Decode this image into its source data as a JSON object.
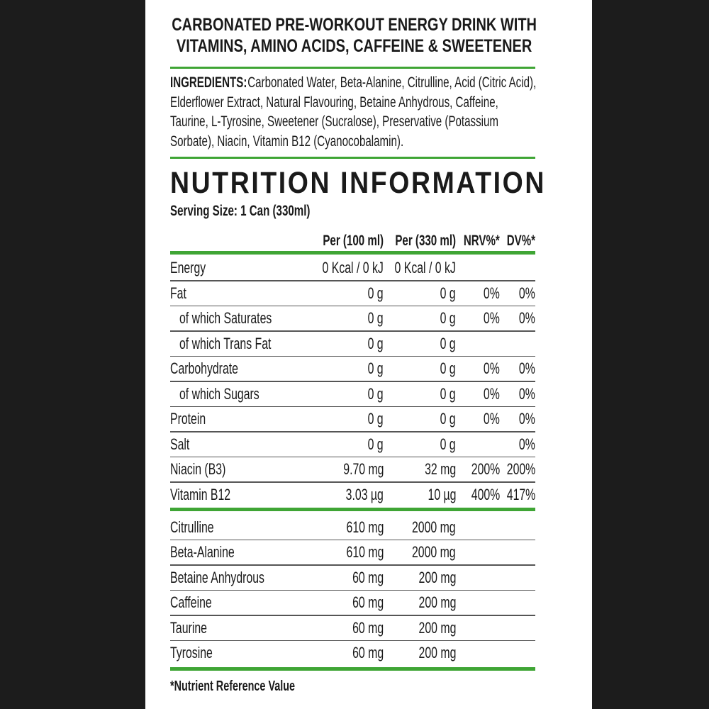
{
  "header": {
    "title_lines": [
      "CARBONATED PRE-WORKOUT ENERGY DRINK WITH",
      "VITAMINS, AMINO ACIDS, CAFFEINE & SWEETENER"
    ]
  },
  "ingredients": {
    "label": "INGREDIENTS:",
    "lines": [
      " Carbonated Water, Beta-Alanine, Citrulline, Acid (Citric Acid),",
      "Elderflower Extract, Natural Flavouring, Betaine Anhydrous, Caffeine,",
      "Taurine, L-Tyrosine, Sweetener (Sucralose), Preservative (Potassium",
      "Sorbate), Niacin, Vitamin B12 (Cyanocobalamin)."
    ]
  },
  "nutrition": {
    "heading": "NUTRITION INFORMATION",
    "serving": "Serving Size: 1 Can (330ml)",
    "columns": [
      "Per (100 ml)",
      "Per (330 ml)",
      "NRV%*",
      "DV%*"
    ],
    "rows": [
      {
        "label": "Energy",
        "per100": "0 Kcal / 0 kJ",
        "per330": "0 Kcal / 0 kJ"
      },
      {
        "label": "Fat",
        "per100": "0 g",
        "per330": "0 g",
        "nrv": "0%",
        "dv": "0%"
      },
      {
        "label": "of which Saturates",
        "indent": true,
        "per100": "0 g",
        "per330": "0 g",
        "nrv": "0%",
        "dv": "0%"
      },
      {
        "label": "of which Trans Fat",
        "indent": true,
        "per100": "0 g",
        "per330": "0 g"
      },
      {
        "label": "Carbohydrate",
        "per100": "0 g",
        "per330": "0 g",
        "nrv": "0%",
        "dv": "0%"
      },
      {
        "label": "of which Sugars",
        "indent": true,
        "per100": "0 g",
        "per330": "0 g",
        "nrv": "0%",
        "dv": "0%"
      },
      {
        "label": "Protein",
        "per100": "0 g",
        "per330": "0 g",
        "nrv": "0%",
        "dv": "0%"
      },
      {
        "label": "Salt",
        "per100": "0 g",
        "per330": "0 g",
        "dv": "0%"
      },
      {
        "label": "Niacin (B3)",
        "per100": "9.70 mg",
        "per330": "32 mg",
        "nrv": "200%",
        "dv": "200%"
      },
      {
        "label": "Vitamin B12",
        "per100": "3.03 µg",
        "per330": "10 µg",
        "nrv": "400%",
        "dv": "417%"
      }
    ],
    "actives": [
      {
        "label": "Citrulline",
        "per100": "610 mg",
        "per330": "2000 mg"
      },
      {
        "label": "Beta-Alanine",
        "per100": "610 mg",
        "per330": "2000 mg"
      },
      {
        "label": "Betaine Anhydrous",
        "per100": "60 mg",
        "per330": "200 mg"
      },
      {
        "label": "Caffeine",
        "per100": "60 mg",
        "per330": "200 mg"
      },
      {
        "label": "Taurine",
        "per100": "60 mg",
        "per330": "200 mg"
      },
      {
        "label": "Tyrosine",
        "per100": "60 mg",
        "per330": "200 mg"
      }
    ],
    "footnote": "*Nutrient Reference Value"
  }
}
